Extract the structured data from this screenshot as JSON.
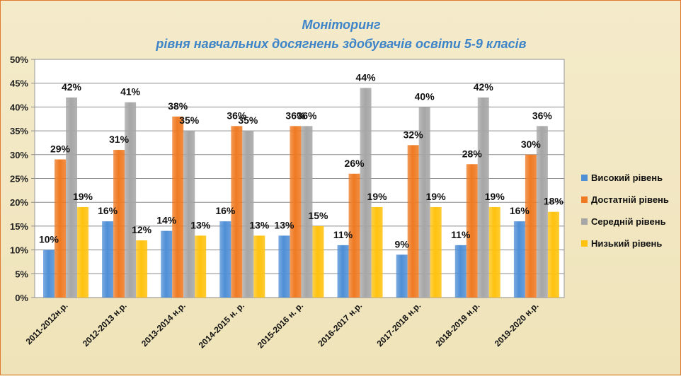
{
  "chart_data": {
    "type": "bar",
    "title": "Моніторинг",
    "subtitle": "рівня навчальних досягнень здобувачів освіти 5-9 класів",
    "xlabel": "",
    "ylabel": "",
    "ylim": [
      0,
      50
    ],
    "y_ticks": [
      "0%",
      "5%",
      "10%",
      "15%",
      "20%",
      "25%",
      "30%",
      "35%",
      "40%",
      "45%",
      "50%"
    ],
    "grid": true,
    "legend": "right",
    "value_suffix": "%",
    "categories": [
      "2011-2012н.р.",
      "2012-2013 н.р.",
      "2013-2014 н.р.",
      "2014-2015 н. р.",
      "2015-2016 н. р.",
      "2016-2017 н.р.",
      "2017-2018 н.р.",
      "2018-2019 н.р.",
      "2019-2020 н.р."
    ],
    "series": [
      {
        "name": "Високий рівень",
        "color": "#4f8fd6",
        "values": [
          10,
          16,
          14,
          16,
          13,
          11,
          9,
          11,
          16
        ]
      },
      {
        "name": "Достатній рівень",
        "color": "#ef7a22",
        "values": [
          29,
          31,
          38,
          36,
          36,
          26,
          32,
          28,
          30
        ]
      },
      {
        "name": "Середній рівень",
        "color": "#a6a6a6",
        "values": [
          42,
          41,
          35,
          35,
          36,
          44,
          40,
          42,
          36
        ]
      },
      {
        "name": "Низький рівень",
        "color": "#ffc20e",
        "values": [
          19,
          12,
          13,
          13,
          15,
          19,
          19,
          19,
          18
        ]
      }
    ]
  }
}
